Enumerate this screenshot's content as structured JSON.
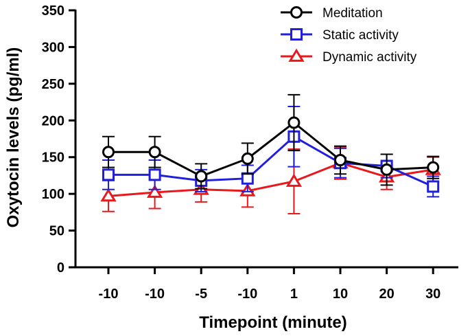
{
  "chart_data": {
    "type": "line",
    "title": "",
    "xlabel": "Timepoint (minute)",
    "ylabel": "Oxytocin levels (pg/ml)",
    "categories": [
      "-10",
      "-10",
      "-5",
      "-10",
      "1",
      "10",
      "20",
      "30"
    ],
    "ylim": [
      0,
      350
    ],
    "yticks": [
      "0",
      "50",
      "100",
      "150",
      "200",
      "250",
      "300",
      "350"
    ],
    "grid": false,
    "legend_position": "top-right",
    "series": [
      {
        "name": "Meditation",
        "color": "#000000",
        "marker": "circle",
        "values": [
          157,
          157,
          124,
          148,
          197,
          146,
          133,
          136
        ],
        "errors": [
          21,
          21,
          17,
          21,
          38,
          19,
          21,
          15
        ]
      },
      {
        "name": "Static activity",
        "color": "#1f1fdc",
        "marker": "square",
        "values": [
          126,
          126,
          118,
          121,
          178,
          142,
          138,
          110
        ],
        "errors": [
          20,
          20,
          15,
          18,
          41,
          20,
          16,
          14
        ]
      },
      {
        "name": "Dynamic activity",
        "color": "#e8191c",
        "marker": "triangle",
        "values": [
          97,
          102,
          106,
          104,
          117,
          142,
          123,
          133
        ],
        "errors": [
          21,
          22,
          17,
          22,
          44,
          22,
          17,
          17
        ]
      }
    ]
  }
}
